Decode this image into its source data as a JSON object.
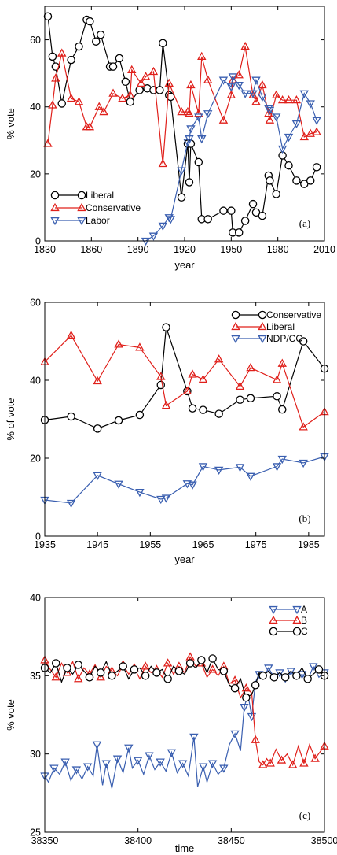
{
  "colors": {
    "black": "#000000",
    "red": "#e0201b",
    "blue": "#3a5fb0"
  },
  "chart_data": [
    {
      "type": "line",
      "panel_label": "(a)",
      "xlabel": "year",
      "ylabel": "% vote",
      "xlim": [
        1830,
        2010
      ],
      "ylim": [
        0,
        70
      ],
      "xticks": [
        1830,
        1860,
        1890,
        1920,
        1950,
        1980,
        2010
      ],
      "yticks": [
        0,
        20,
        40,
        60
      ],
      "legend_position": "bottom-left",
      "series": [
        {
          "name": "Liberal",
          "color": "#000000",
          "marker": "circle",
          "x": [
            1832,
            1835,
            1837,
            1841,
            1847,
            1852,
            1857,
            1859,
            1863,
            1866,
            1872,
            1874,
            1878,
            1882,
            1885,
            1891,
            1896,
            1900,
            1904,
            1906,
            1910,
            1911,
            1918,
            1922,
            1923,
            1924,
            1929,
            1931,
            1935,
            1945,
            1950,
            1951,
            1955,
            1959,
            1964,
            1966,
            1970,
            1974,
            1974.8,
            1979,
            1983,
            1987,
            1992,
            1997,
            2001,
            2005
          ],
          "y": [
            67,
            55,
            52,
            41,
            54,
            58,
            66,
            65.5,
            59.5,
            61.5,
            52,
            52,
            54.5,
            47.5,
            41.5,
            45,
            45.5,
            45,
            45,
            59,
            43.5,
            43,
            13,
            29,
            17.5,
            29,
            23.5,
            6.5,
            6.5,
            9,
            9,
            2.5,
            2.5,
            6,
            11,
            8.5,
            7.5,
            19.5,
            18,
            14,
            25.5,
            22.5,
            18,
            17,
            18,
            22
          ]
        },
        {
          "name": "Conservative",
          "color": "#e0201b",
          "marker": "triangle-up",
          "x": [
            1832,
            1835,
            1837,
            1841,
            1847,
            1852,
            1857,
            1859,
            1865,
            1868,
            1874,
            1880,
            1885,
            1886,
            1892,
            1895,
            1900,
            1906,
            1910,
            1918,
            1922,
            1923,
            1924,
            1929,
            1931,
            1935,
            1945,
            1950,
            1951,
            1955,
            1959,
            1964,
            1966,
            1970,
            1974,
            1974.8,
            1979,
            1983,
            1987,
            1992,
            1997,
            2001,
            2005
          ],
          "y": [
            29,
            40.5,
            48.5,
            56,
            42.5,
            41.5,
            34,
            34,
            40,
            38.5,
            44,
            42.5,
            43.5,
            51,
            47,
            49,
            50.5,
            23,
            47,
            38.5,
            38.5,
            38,
            46.5,
            38,
            55,
            48,
            36,
            43.5,
            48,
            49.5,
            58,
            43.5,
            41.5,
            46.5,
            38,
            36,
            43.5,
            42,
            42,
            42,
            31,
            32,
            32.5
          ]
        },
        {
          "name": "Labor",
          "color": "#3a5fb0",
          "marker": "triangle-down",
          "x": [
            1895,
            1900,
            1906,
            1910,
            1911,
            1918,
            1922,
            1923,
            1924,
            1929,
            1931,
            1935,
            1945,
            1950,
            1951,
            1955,
            1959,
            1964,
            1966,
            1970,
            1974,
            1974.8,
            1979,
            1983,
            1987,
            1992,
            1997,
            2001,
            2005
          ],
          "y": [
            0,
            1.5,
            4.5,
            7,
            6.5,
            21,
            29.5,
            30.5,
            33.5,
            37,
            30.5,
            38,
            48,
            46,
            49,
            46.5,
            44,
            44,
            48,
            43,
            39.5,
            39,
            37,
            27.5,
            31,
            35,
            44,
            41,
            36
          ]
        }
      ]
    },
    {
      "type": "line",
      "panel_label": "(b)",
      "xlabel": "year",
      "ylabel": "% of vote",
      "xlim": [
        1935,
        1988
      ],
      "ylim": [
        0,
        60
      ],
      "xticks": [
        1935,
        1945,
        1955,
        1965,
        1975,
        1985
      ],
      "yticks": [
        0,
        20,
        40,
        60
      ],
      "legend_position": "top-right",
      "series": [
        {
          "name": "Conservative",
          "color": "#000000",
          "marker": "circle",
          "x": [
            1935,
            1940,
            1945,
            1949,
            1953,
            1957,
            1958,
            1962,
            1963,
            1965,
            1968,
            1972,
            1974,
            1979,
            1980,
            1984,
            1988
          ],
          "y": [
            29.8,
            30.7,
            27.6,
            29.7,
            31.1,
            38.8,
            53.6,
            37.2,
            32.8,
            32.4,
            31.4,
            35,
            35.4,
            35.9,
            32.5,
            50,
            43
          ]
        },
        {
          "name": "Liberal",
          "color": "#e0201b",
          "marker": "triangle-up",
          "x": [
            1935,
            1940,
            1945,
            1949,
            1953,
            1957,
            1958,
            1962,
            1963,
            1965,
            1968,
            1972,
            1974,
            1979,
            1980,
            1984,
            1988
          ],
          "y": [
            44.7,
            51.5,
            39.8,
            49.2,
            48.4,
            40.9,
            33.5,
            37.2,
            41.5,
            40.2,
            45.4,
            38.4,
            43.2,
            40.1,
            44.3,
            28,
            31.9
          ]
        },
        {
          "name": "NDP/CC",
          "color": "#3a5fb0",
          "marker": "triangle-down",
          "x": [
            1935,
            1940,
            1945,
            1949,
            1953,
            1957,
            1958,
            1962,
            1963,
            1965,
            1968,
            1972,
            1974,
            1979,
            1980,
            1984,
            1988
          ],
          "y": [
            9.3,
            8.5,
            15.6,
            13.4,
            11.3,
            9.5,
            9.8,
            13.5,
            13.2,
            17.9,
            17,
            17.7,
            15.4,
            17.9,
            19.8,
            18.8,
            20.4
          ]
        }
      ]
    },
    {
      "type": "line",
      "panel_label": "(c)",
      "xlabel": "time",
      "ylabel": "% vote",
      "xlim": [
        38350,
        38500
      ],
      "ylim": [
        25,
        40
      ],
      "xticks": [
        38350,
        38400,
        38450,
        38500
      ],
      "yticks": [
        25,
        30,
        35,
        40
      ],
      "legend_position": "top-right",
      "series": [
        {
          "name": "A",
          "color": "#3a5fb0",
          "marker": "triangle-down",
          "x": [
            38350,
            38352,
            38355,
            38358,
            38361,
            38364,
            38367,
            38370,
            38373,
            38376,
            38378,
            38381,
            38383,
            38386,
            38389,
            38392,
            38395,
            38397,
            38400,
            38403,
            38406,
            38409,
            38412,
            38415,
            38418,
            38421,
            38424,
            38427,
            38430,
            38432,
            38435,
            38437,
            38440,
            38443,
            38446,
            38449,
            38452,
            38455,
            38457,
            38459,
            38461,
            38463,
            38465,
            38467,
            38470,
            38473,
            38476,
            38479,
            38482,
            38485,
            38488,
            38491,
            38494,
            38497,
            38500
          ],
          "y": [
            28.6,
            28.2,
            29.1,
            28.7,
            29.5,
            28.3,
            29.0,
            28.4,
            29.2,
            28.6,
            30.6,
            28.0,
            29.4,
            27.8,
            29.7,
            28.8,
            30.4,
            29.1,
            29.6,
            28.7,
            29.9,
            29.0,
            29.5,
            28.9,
            30.1,
            28.8,
            29.4,
            28.6,
            31.1,
            27.9,
            29.2,
            28.2,
            29.4,
            28.7,
            29.1,
            30.6,
            31.3,
            30.2,
            33.0,
            33.8,
            32.4,
            34.6,
            35.1,
            34.8,
            35.5,
            34.9,
            35.2,
            34.6,
            35.3,
            34.8,
            35.1,
            34.7,
            35.6,
            34.9,
            35.2
          ]
        },
        {
          "name": "B",
          "color": "#e0201b",
          "marker": "triangle-up",
          "x": [
            38350,
            38353,
            38356,
            38359,
            38362,
            38365,
            38368,
            38371,
            38374,
            38377,
            38380,
            38383,
            38386,
            38389,
            38392,
            38395,
            38398,
            38401,
            38404,
            38407,
            38410,
            38413,
            38416,
            38419,
            38422,
            38425,
            38428,
            38431,
            38434,
            38437,
            38440,
            38443,
            38446,
            38449,
            38452,
            38455,
            38458,
            38461,
            38463,
            38465,
            38467,
            38469,
            38471,
            38474,
            38477,
            38480,
            38483,
            38486,
            38489,
            38492,
            38495,
            38498,
            38500
          ],
          "y": [
            36.0,
            35.4,
            34.9,
            35.8,
            35.2,
            35.9,
            34.8,
            35.5,
            35.1,
            35.7,
            34.9,
            35.6,
            35.3,
            35.0,
            35.7,
            35.1,
            35.5,
            34.8,
            35.6,
            35.2,
            35.4,
            34.9,
            35.8,
            35.1,
            35.6,
            35.2,
            36.2,
            35.6,
            35.8,
            34.9,
            35.4,
            35.0,
            35.6,
            34.5,
            34.7,
            33.6,
            34.2,
            33.9,
            30.9,
            29.5,
            29.3,
            29.7,
            29.4,
            30.3,
            29.6,
            30.0,
            29.3,
            30.5,
            29.4,
            30.6,
            29.7,
            30.2,
            30.5
          ]
        },
        {
          "name": "C",
          "color": "#000000",
          "marker": "circle",
          "x": [
            38350,
            38353,
            38356,
            38359,
            38362,
            38365,
            38368,
            38371,
            38374,
            38377,
            38380,
            38383,
            38386,
            38389,
            38392,
            38395,
            38398,
            38401,
            38404,
            38407,
            38410,
            38413,
            38416,
            38419,
            38422,
            38425,
            38428,
            38431,
            38434,
            38437,
            38440,
            38443,
            38446,
            38449,
            38452,
            38455,
            38458,
            38461,
            38463,
            38465,
            38467,
            38470,
            38473,
            38476,
            38479,
            38482,
            38485,
            38488,
            38491,
            38494,
            38497,
            38500
          ],
          "y": [
            35.5,
            35.2,
            35.8,
            34.6,
            35.5,
            35.1,
            35.7,
            35.3,
            34.9,
            35.6,
            35.2,
            35.9,
            35.0,
            35.3,
            35.6,
            34.8,
            35.4,
            35.5,
            35.0,
            35.6,
            35.2,
            35.4,
            34.8,
            35.6,
            35.3,
            35.1,
            35.8,
            35.5,
            36.0,
            35.2,
            36.1,
            35.4,
            35.3,
            34.4,
            34.2,
            34.8,
            33.6,
            33.8,
            34.4,
            35.2,
            35.0,
            35.3,
            34.9,
            35.2,
            34.9,
            35.3,
            35.0,
            35.5,
            34.8,
            35.1,
            35.4,
            35.0
          ]
        }
      ]
    }
  ]
}
